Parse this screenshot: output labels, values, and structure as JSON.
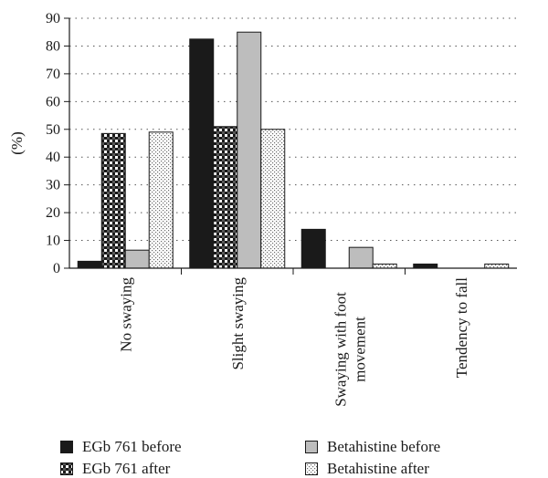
{
  "chart_data": {
    "type": "bar",
    "title": "",
    "xlabel": "",
    "ylabel": "(%)",
    "ylim": [
      0,
      90
    ],
    "yticks": [
      0,
      10,
      20,
      30,
      40,
      50,
      60,
      70,
      80,
      90
    ],
    "grid": "horizontal dotted",
    "legend_position": "bottom",
    "categories": [
      "No swaying",
      "Slight swaying",
      "Swaying with foot movement",
      "Tendency to fall"
    ],
    "category_lines": [
      [
        "No swaying"
      ],
      [
        "Slight swaying"
      ],
      [
        "Swaying with foot",
        "movement"
      ],
      [
        "Tendency to fall"
      ]
    ],
    "series": [
      {
        "name": "EGb 761 before",
        "values": [
          2.5,
          82.5,
          14,
          1.5
        ],
        "pattern": "solid-black"
      },
      {
        "name": "EGb 761 after",
        "values": [
          48.5,
          51,
          0,
          0
        ],
        "pattern": "checker"
      },
      {
        "name": "Betahistine before",
        "values": [
          6.5,
          85,
          7.5,
          0
        ],
        "pattern": "solid-gray"
      },
      {
        "name": "Betahistine after",
        "values": [
          49,
          50,
          1.5,
          1.5
        ],
        "pattern": "dotted"
      }
    ]
  },
  "colors": {
    "egb_before": "#1a1a1a",
    "betahistine_before": "#bdbdbd",
    "axis": "#1a1a1a"
  }
}
